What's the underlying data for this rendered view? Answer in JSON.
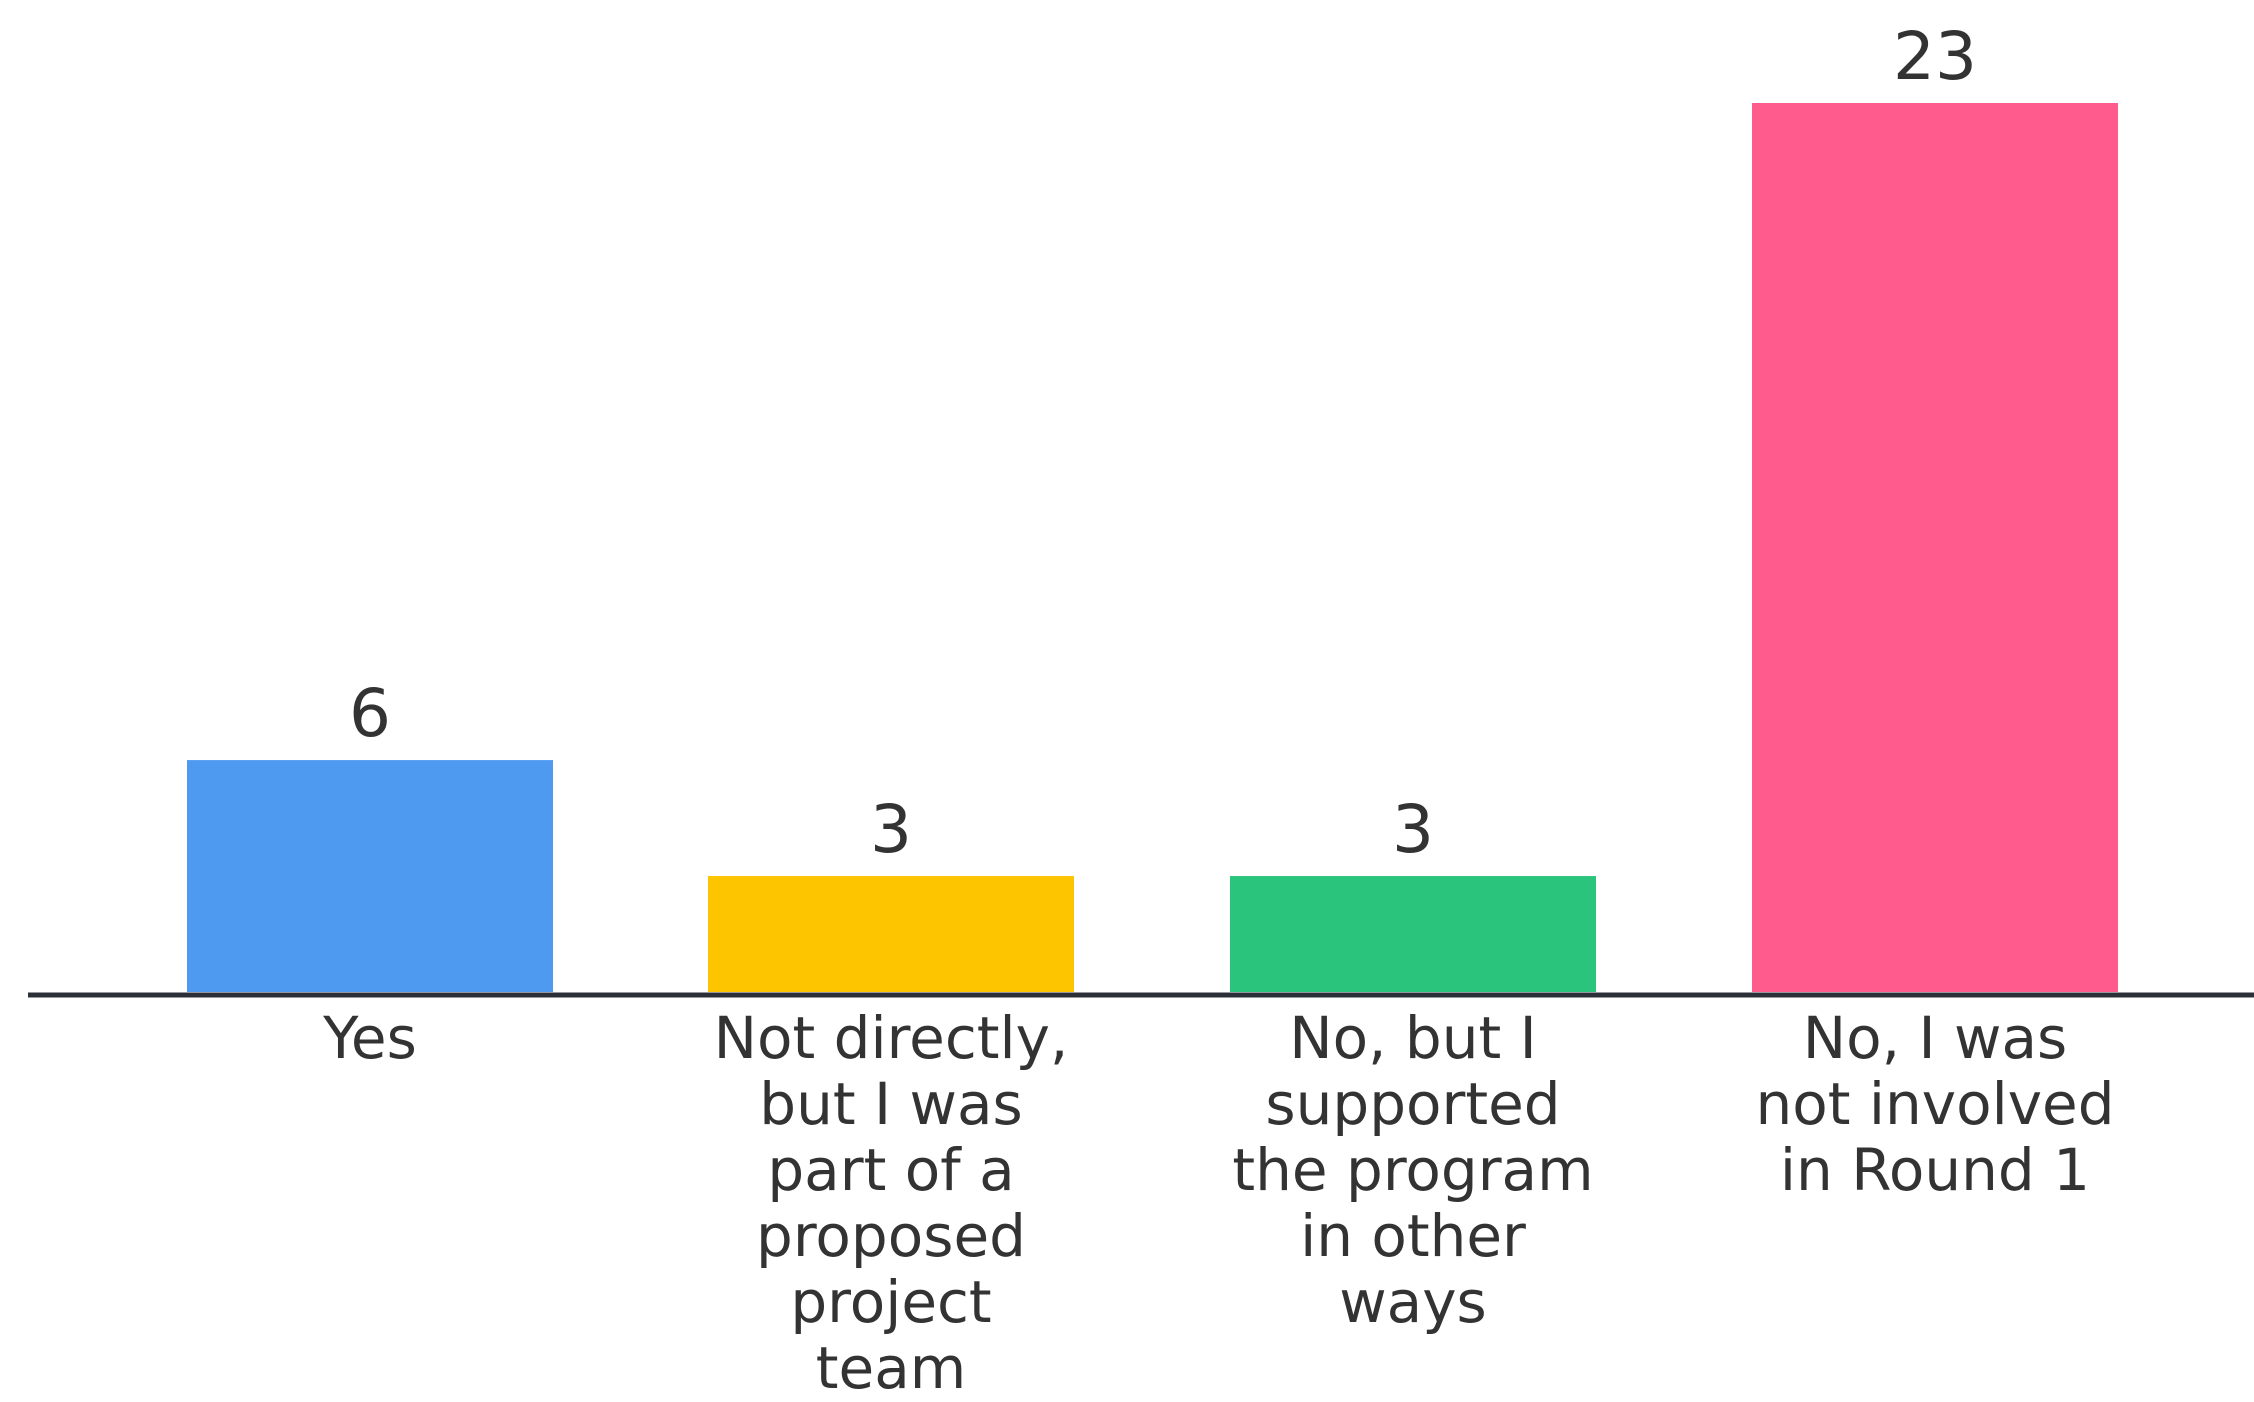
{
  "chart_data": {
    "type": "bar",
    "title": "",
    "xlabel": "",
    "ylabel": "",
    "categories": [
      [
        "Yes"
      ],
      [
        "Not directly,",
        "but I was",
        "part of a",
        "proposed",
        "project",
        "team"
      ],
      [
        "No, but I",
        "supported",
        "the program",
        "in other",
        "ways"
      ],
      [
        "No, I was",
        "not involved",
        "in Round 1"
      ]
    ],
    "values": [
      6,
      3,
      3,
      23
    ],
    "colors": [
      "#4E9AF1",
      "#FDC500",
      "#2BC47D",
      "#FF5C8D"
    ],
    "ylim": [
      0,
      23
    ],
    "grid": false,
    "legend": "none"
  }
}
